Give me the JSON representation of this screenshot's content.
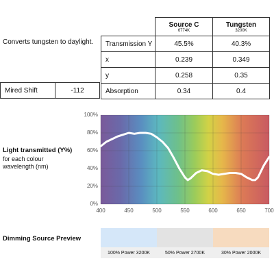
{
  "description": "Converts tungsten to daylight.",
  "mired_shift": {
    "label": "Mired Shift",
    "value": "-112"
  },
  "table": {
    "headers": [
      {
        "name": "Source C",
        "sub": "6774K"
      },
      {
        "name": "Tungsten",
        "sub": "3200K"
      }
    ],
    "rows": [
      [
        "Transmission Y",
        "45.5%",
        "40.3%"
      ],
      [
        "x",
        "0.239",
        "0.349"
      ],
      [
        "y",
        "0.258",
        "0.35"
      ],
      [
        "Absorption",
        "0.34",
        "0.4"
      ]
    ]
  },
  "chart_caption": {
    "title": "Light transmitted (Y%)",
    "lines": [
      "for each colour",
      "wavelength (nm)"
    ]
  },
  "chart_data": {
    "type": "line",
    "x": [
      400,
      410,
      420,
      430,
      440,
      450,
      460,
      470,
      480,
      490,
      500,
      510,
      520,
      530,
      540,
      550,
      555,
      560,
      570,
      580,
      590,
      600,
      610,
      620,
      630,
      640,
      650,
      660,
      670,
      675,
      680,
      690,
      700
    ],
    "series": [
      {
        "color": "#ffffff",
        "values": [
          65,
          70,
          73,
          76,
          78,
          80,
          79,
          80,
          80,
          79,
          75,
          70,
          63,
          52,
          40,
          30,
          27,
          29,
          35,
          38,
          37,
          34,
          33,
          34,
          35,
          35,
          34,
          30,
          27,
          27,
          30,
          43,
          53
        ]
      }
    ],
    "xlim": [
      400,
      700
    ],
    "ylim": [
      0,
      100
    ],
    "xticks": [
      400,
      450,
      500,
      550,
      600,
      650,
      700
    ],
    "yticks": [
      {
        "value": 0,
        "label": "0%"
      },
      {
        "value": 20,
        "label": "20%"
      },
      {
        "value": 40,
        "label": "40%"
      },
      {
        "value": 60,
        "label": "60%"
      },
      {
        "value": 80,
        "label": "80%"
      },
      {
        "value": 100,
        "label": "100%"
      }
    ],
    "grid": true
  },
  "preview": {
    "title": "Dimming Source Preview",
    "items": [
      {
        "label": "100% Power 3200K",
        "color": "#d5e7f9"
      },
      {
        "label": "50% Power 2700K",
        "color": "#e3e3e3"
      },
      {
        "label": "30% Power 2000K",
        "color": "#f7dbbf"
      }
    ]
  }
}
